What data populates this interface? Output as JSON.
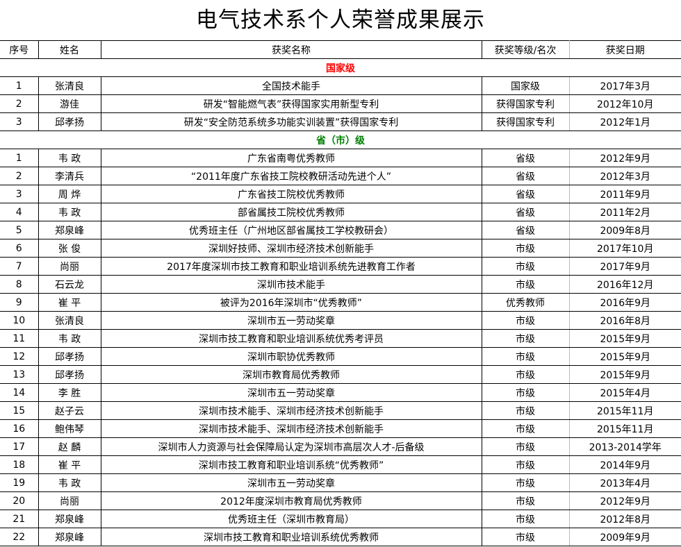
{
  "title": "电气技术系个人荣誉成果展示",
  "headers": [
    "序号",
    "姓名",
    "获奖名称",
    "获奖等级/名次",
    "获奖日期"
  ],
  "colors": {
    "national": "#ff0000",
    "provincial": "#008000"
  },
  "sections": [
    {
      "label": "国家级",
      "color_key": "national",
      "rows": [
        [
          "1",
          "张清良",
          "全国技术能手",
          "国家级",
          "2017年3月"
        ],
        [
          "2",
          "游佳",
          "研发“智能燃气表”获得国家实用新型专利",
          "获得国家专利",
          "2012年10月"
        ],
        [
          "3",
          "邱孝扬",
          "研发“安全防范系统多功能实训装置”获得国家专利",
          "获得国家专利",
          "2012年1月"
        ]
      ]
    },
    {
      "label": "省（市）级",
      "color_key": "provincial",
      "rows": [
        [
          "1",
          "韦  政",
          "广东省南粤优秀教师",
          "省级",
          "2012年9月"
        ],
        [
          "2",
          "李清兵",
          "“2011年度广东省技工院校教研活动先进个人”",
          "省级",
          "2012年3月"
        ],
        [
          "3",
          "周  烨",
          "广东省技工院校优秀教师",
          "省级",
          "2011年9月"
        ],
        [
          "4",
          "韦  政",
          "部省属技工院校优秀教师",
          "省级",
          "2011年2月"
        ],
        [
          "5",
          "郑泉峰",
          "优秀班主任（广州地区部省属技工学校教研会）",
          "省级",
          "2009年8月"
        ],
        [
          "6",
          "张  俊",
          "深圳好技师、深圳市经济技术创新能手",
          "市级",
          "2017年10月"
        ],
        [
          "7",
          "尚丽",
          "2017年度深圳市技工教育和职业培训系统先进教育工作者",
          "市级",
          "2017年9月"
        ],
        [
          "8",
          "石云龙",
          "深圳市技术能手",
          "市级",
          "2016年12月"
        ],
        [
          "9",
          "崔  平",
          "被评为2016年深圳市“优秀教师”",
          "优秀教师",
          "2016年9月"
        ],
        [
          "10",
          "张清良",
          "深圳市五一劳动奖章",
          "市级",
          "2016年8月"
        ],
        [
          "11",
          "韦  政",
          "深圳市技工教育和职业培训系统优秀考评员",
          "市级",
          "2015年9月"
        ],
        [
          "12",
          "邱孝扬",
          "深圳市职协优秀教师",
          "市级",
          "2015年9月"
        ],
        [
          "13",
          "邱孝扬",
          "深圳市教育局优秀教师",
          "市级",
          "2015年9月"
        ],
        [
          "14",
          "李  胜",
          "深圳市五一劳动奖章",
          "市级",
          "2015年4月"
        ],
        [
          "15",
          "赵子云",
          "深圳市技术能手、深圳市经济技术创新能手",
          "市级",
          "2015年11月"
        ],
        [
          "16",
          "鲍伟琴",
          "深圳市技术能手、深圳市经济技术创新能手",
          "市级",
          "2015年11月"
        ],
        [
          "17",
          "赵  麟",
          "深圳市人力资源与社会保障局认定为深圳市高层次人才-后备级",
          "市级",
          "2013-2014学年"
        ],
        [
          "18",
          "崔  平",
          "深圳市技工教育和职业培训系统“优秀教师”",
          "市级",
          "2014年9月"
        ],
        [
          "19",
          "韦  政",
          "深圳市五一劳动奖章",
          "市级",
          "2013年4月"
        ],
        [
          "20",
          "尚丽",
          "2012年度深圳市教育局优秀教师",
          "市级",
          "2012年9月"
        ],
        [
          "21",
          "郑泉峰",
          "优秀班主任（深圳市教育局）",
          "市级",
          "2012年8月"
        ],
        [
          "22",
          "郑泉峰",
          "深圳市技工教育和职业培训系统优秀教师",
          "市级",
          "2009年9月"
        ]
      ]
    }
  ]
}
